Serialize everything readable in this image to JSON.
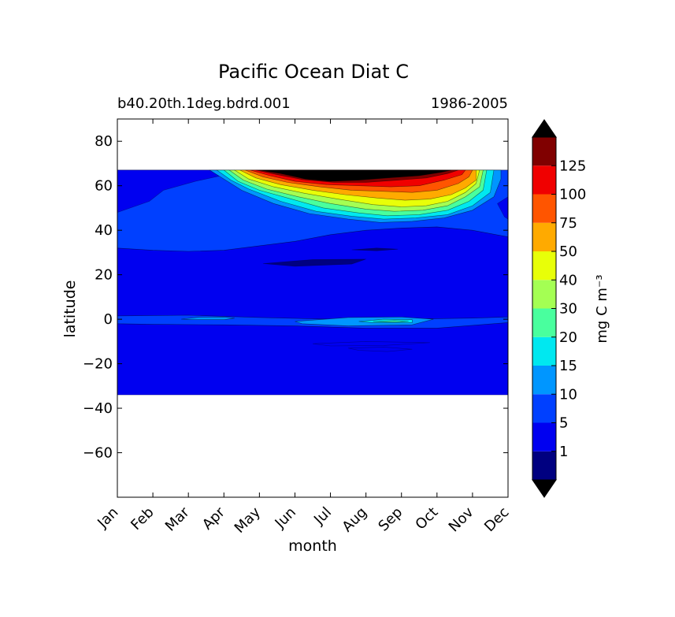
{
  "chart_data": {
    "type": "heatmap",
    "title": "Pacific Ocean Diat C",
    "subtitle_left": "b40.20th.1deg.bdrd.001",
    "subtitle_right": "1986-2005",
    "xlabel": "month",
    "ylabel": "latitude",
    "x_ticks": [
      "Jan",
      "Feb",
      "Mar",
      "Apr",
      "May",
      "Jun",
      "Jul",
      "Aug",
      "Sep",
      "Oct",
      "Nov",
      "Dec"
    ],
    "ylim": [
      -80,
      90
    ],
    "y_ticks": [
      {
        "value": 80,
        "label": "80"
      },
      {
        "value": 60,
        "label": "60"
      },
      {
        "value": 40,
        "label": "40"
      },
      {
        "value": 20,
        "label": "20"
      },
      {
        "value": 0,
        "label": "0"
      },
      {
        "value": -20,
        "label": "−20"
      },
      {
        "value": -40,
        "label": "−40"
      },
      {
        "value": -60,
        "label": "−60"
      }
    ],
    "data_lat_range": [
      -34,
      67
    ],
    "colorbar": {
      "label": "mg C m⁻³",
      "levels": [
        0.5,
        1,
        5,
        10,
        15,
        20,
        30,
        40,
        50,
        75,
        100,
        125,
        150
      ],
      "tick_labels": [
        {
          "value": 1,
          "label": "1"
        },
        {
          "value": 5,
          "label": "5"
        },
        {
          "value": 10,
          "label": "10"
        },
        {
          "value": 15,
          "label": "15"
        },
        {
          "value": 20,
          "label": "20"
        },
        {
          "value": 30,
          "label": "30"
        },
        {
          "value": 40,
          "label": "40"
        },
        {
          "value": 50,
          "label": "50"
        },
        {
          "value": 75,
          "label": "75"
        },
        {
          "value": 100,
          "label": "100"
        },
        {
          "value": 125,
          "label": "125"
        }
      ],
      "colors": [
        "#000080",
        "#0000f0",
        "#0040ff",
        "#0096ff",
        "#00e8f0",
        "#49ff9e",
        "#a4ff53",
        "#e8ff08",
        "#ffaa00",
        "#ff5500",
        "#f00000",
        "#800000"
      ],
      "under_color": "#000000",
      "over_color": "#000000"
    },
    "regions": [
      {
        "name": "ocean-base",
        "level": 1,
        "month_lat": [
          [
            0,
            -34
          ],
          [
            11,
            -34
          ],
          [
            11,
            67
          ],
          [
            0,
            67
          ]
        ]
      },
      {
        "name": "north-band",
        "level": 2,
        "month_lat": [
          [
            0,
            32
          ],
          [
            1,
            31
          ],
          [
            2,
            30.5
          ],
          [
            3,
            31
          ],
          [
            4,
            33
          ],
          [
            5,
            35
          ],
          [
            6,
            38
          ],
          [
            7,
            40
          ],
          [
            8,
            41
          ],
          [
            9,
            41.5
          ],
          [
            10,
            40
          ],
          [
            11,
            37
          ],
          [
            11,
            67
          ],
          [
            0,
            67
          ]
        ]
      },
      {
        "name": "equatorial-band",
        "level": 2,
        "month_lat": [
          [
            0,
            1.5
          ],
          [
            2,
            1.8
          ],
          [
            4,
            0.8
          ],
          [
            6,
            0
          ],
          [
            8,
            0
          ],
          [
            10,
            0.5
          ],
          [
            11,
            1
          ],
          [
            11,
            -1.5
          ],
          [
            9,
            -4
          ],
          [
            7,
            -4
          ],
          [
            5,
            -3
          ],
          [
            3,
            -2.5
          ],
          [
            1,
            -2.3
          ],
          [
            0,
            -2
          ]
        ]
      },
      {
        "name": "nw-deep-blue",
        "level": 1,
        "month_lat": [
          [
            0,
            48
          ],
          [
            0.9,
            53
          ],
          [
            1.3,
            58
          ],
          [
            2.2,
            62
          ],
          [
            3.2,
            65.5
          ],
          [
            3.2,
            67
          ],
          [
            0,
            67
          ]
        ]
      },
      {
        "name": "ne-deep-blue",
        "level": 1,
        "month_lat": [
          [
            11,
            55
          ],
          [
            10.7,
            52
          ],
          [
            10.9,
            46
          ],
          [
            11,
            45
          ]
        ]
      },
      {
        "name": "bloom-10",
        "level": 3,
        "month_lat": [
          [
            2.6,
            67
          ],
          [
            3.0,
            63
          ],
          [
            3.5,
            58
          ],
          [
            4.4,
            52
          ],
          [
            5.4,
            47.5
          ],
          [
            6.5,
            45
          ],
          [
            7.4,
            43.5
          ],
          [
            8.3,
            44
          ],
          [
            9.2,
            45.5
          ],
          [
            10.0,
            49
          ],
          [
            10.6,
            55
          ],
          [
            10.8,
            63
          ],
          [
            10.8,
            67
          ]
        ]
      },
      {
        "name": "bloom-15",
        "level": 4,
        "month_lat": [
          [
            2.8,
            67
          ],
          [
            3.2,
            62.5
          ],
          [
            3.7,
            58.5
          ],
          [
            4.6,
            53
          ],
          [
            5.6,
            48.5
          ],
          [
            6.6,
            46.3
          ],
          [
            7.5,
            45
          ],
          [
            8.4,
            45.5
          ],
          [
            9.3,
            47
          ],
          [
            10.0,
            51
          ],
          [
            10.5,
            57
          ],
          [
            10.6,
            67
          ]
        ]
      },
      {
        "name": "bloom-20",
        "level": 5,
        "month_lat": [
          [
            3.0,
            67
          ],
          [
            3.4,
            62
          ],
          [
            4.0,
            58
          ],
          [
            4.9,
            54
          ],
          [
            5.8,
            50
          ],
          [
            6.8,
            47.8
          ],
          [
            7.6,
            46.5
          ],
          [
            8.5,
            47
          ],
          [
            9.3,
            49
          ],
          [
            9.9,
            53
          ],
          [
            10.3,
            58
          ],
          [
            10.4,
            67
          ]
        ]
      },
      {
        "name": "bloom-30",
        "level": 6,
        "month_lat": [
          [
            3.15,
            67
          ],
          [
            3.55,
            62.5
          ],
          [
            4.2,
            58.5
          ],
          [
            5.1,
            55
          ],
          [
            6.0,
            52
          ],
          [
            7.0,
            49.5
          ],
          [
            7.8,
            48.5
          ],
          [
            8.6,
            49
          ],
          [
            9.3,
            51
          ],
          [
            9.8,
            55
          ],
          [
            10.2,
            59.5
          ],
          [
            10.3,
            67
          ]
        ]
      },
      {
        "name": "bloom-40",
        "level": 7,
        "month_lat": [
          [
            3.3,
            67
          ],
          [
            3.7,
            63
          ],
          [
            4.4,
            59.5
          ],
          [
            5.3,
            56.5
          ],
          [
            6.2,
            54
          ],
          [
            7.2,
            51.5
          ],
          [
            8.0,
            50.5
          ],
          [
            8.7,
            51
          ],
          [
            9.3,
            53
          ],
          [
            9.8,
            57
          ],
          [
            10.1,
            61
          ],
          [
            10.2,
            67
          ]
        ]
      },
      {
        "name": "bloom-50",
        "level": 8,
        "month_lat": [
          [
            3.45,
            67
          ],
          [
            3.9,
            63.5
          ],
          [
            4.6,
            60.5
          ],
          [
            5.5,
            58
          ],
          [
            6.4,
            56
          ],
          [
            7.3,
            54.5
          ],
          [
            8.1,
            53.5
          ],
          [
            8.8,
            54
          ],
          [
            9.4,
            56
          ],
          [
            9.8,
            59
          ],
          [
            10.1,
            62.5
          ],
          [
            10.1,
            67
          ]
        ]
      },
      {
        "name": "bloom-75",
        "level": 9,
        "month_lat": [
          [
            3.6,
            67
          ],
          [
            4.1,
            64
          ],
          [
            4.8,
            61.5
          ],
          [
            5.7,
            59.5
          ],
          [
            6.6,
            58
          ],
          [
            7.5,
            57.5
          ],
          [
            8.3,
            57
          ],
          [
            9.0,
            58
          ],
          [
            9.6,
            61
          ],
          [
            9.9,
            64
          ],
          [
            10.0,
            67
          ]
        ]
      },
      {
        "name": "bloom-100",
        "level": 10,
        "month_lat": [
          [
            3.75,
            67
          ],
          [
            4.3,
            64.5
          ],
          [
            5.0,
            62
          ],
          [
            5.9,
            60.5
          ],
          [
            6.8,
            60
          ],
          [
            7.7,
            59.5
          ],
          [
            8.5,
            60
          ],
          [
            9.2,
            62.5
          ],
          [
            9.7,
            65
          ],
          [
            9.8,
            67
          ]
        ]
      },
      {
        "name": "bloom-125",
        "level": 11,
        "month_lat": [
          [
            3.9,
            67
          ],
          [
            4.5,
            65
          ],
          [
            5.2,
            62.8
          ],
          [
            6.1,
            61.5
          ],
          [
            7.0,
            61.5
          ],
          [
            7.9,
            62.5
          ],
          [
            8.7,
            63.5
          ],
          [
            9.3,
            65.5
          ],
          [
            9.6,
            67
          ]
        ]
      },
      {
        "name": "bloom-over",
        "level": 12,
        "month_lat": [
          [
            4.0,
            67
          ],
          [
            4.6,
            65.5
          ],
          [
            5.3,
            63
          ],
          [
            6.0,
            62
          ],
          [
            6.8,
            62.5
          ],
          [
            7.6,
            63.5
          ],
          [
            8.5,
            64.5
          ],
          [
            9.1,
            66
          ],
          [
            9.4,
            67
          ]
        ]
      },
      {
        "name": "eq-patch-apr",
        "level": 3,
        "month_lat": [
          [
            1.8,
            0
          ],
          [
            2.3,
            0.9
          ],
          [
            3.0,
            1.0
          ],
          [
            3.3,
            0.5
          ],
          [
            3.0,
            -0.2
          ],
          [
            2.2,
            -0.2
          ]
        ]
      },
      {
        "name": "eq-patch-aug",
        "level": 3,
        "month_lat": [
          [
            5.0,
            -1
          ],
          [
            6.5,
            0.8
          ],
          [
            8.0,
            1
          ],
          [
            8.9,
            0
          ],
          [
            8.3,
            -2.5
          ],
          [
            6.5,
            -3
          ],
          [
            5.2,
            -2
          ]
        ]
      },
      {
        "name": "eq-patch-aug-15",
        "level": 4,
        "month_lat": [
          [
            6.8,
            -1
          ],
          [
            7.5,
            0
          ],
          [
            8.3,
            -0.2
          ],
          [
            8.3,
            -1.5
          ],
          [
            7.2,
            -1.5
          ]
        ]
      },
      {
        "name": "eq-patch-aug-20",
        "level": 5,
        "month_lat": [
          [
            7.2,
            -1
          ],
          [
            7.8,
            -0.6
          ],
          [
            8.2,
            -0.9
          ],
          [
            7.8,
            -1.2
          ]
        ]
      },
      {
        "name": "south-streak",
        "level": 1,
        "month_lat": [
          [
            5.5,
            -11
          ],
          [
            7.0,
            -10
          ],
          [
            8.8,
            -10.5
          ],
          [
            7.5,
            -11.8
          ],
          [
            6.0,
            -12
          ]
        ]
      },
      {
        "name": "south-streak-2",
        "level": 1,
        "month_lat": [
          [
            6.5,
            -13
          ],
          [
            7.5,
            -12.5
          ],
          [
            8.3,
            -13.5
          ],
          [
            7.6,
            -14.5
          ],
          [
            6.8,
            -14
          ]
        ]
      },
      {
        "name": "north-low",
        "level": 0,
        "month_lat": [
          [
            4.1,
            25
          ],
          [
            5.5,
            26.8
          ],
          [
            7.0,
            27
          ],
          [
            6.6,
            24.8
          ],
          [
            5.0,
            23.8
          ]
        ]
      },
      {
        "name": "north-low-2",
        "level": 0,
        "month_lat": [
          [
            6.6,
            31.2
          ],
          [
            7.3,
            32
          ],
          [
            7.9,
            31.5
          ],
          [
            7.3,
            30.8
          ]
        ]
      }
    ]
  }
}
